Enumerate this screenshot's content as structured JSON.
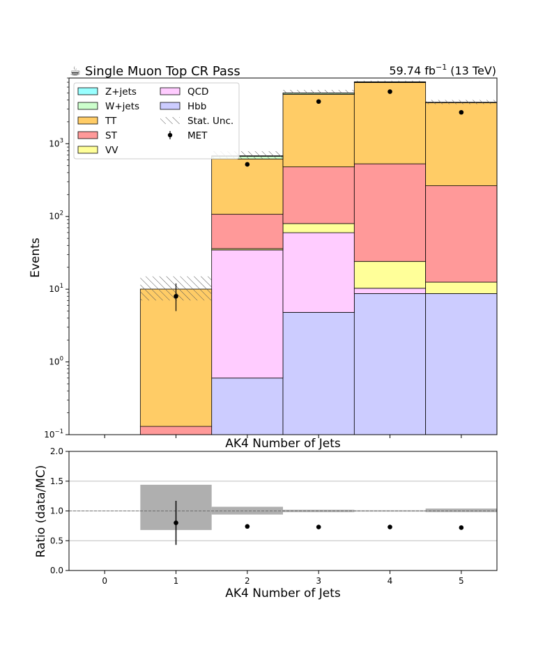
{
  "figure": {
    "title": "☕ Single Muon Top CR Pass",
    "lumi_label": "59.74 fb",
    "lumi_exponent": "−1",
    "energy_label": "(13 TeV)"
  },
  "chart_data": [
    {
      "type": "bar",
      "name": "main",
      "stacked": true,
      "log_y": true,
      "xlabel": "AK4 Number of Jets",
      "ylabel": "Events",
      "xlim": [
        -0.5,
        5.5
      ],
      "ylim": [
        0.1,
        8000
      ],
      "y_ticks": [
        {
          "value": 0.1,
          "mant": "10",
          "exp": "−1"
        },
        {
          "value": 1,
          "mant": "10",
          "exp": "0"
        },
        {
          "value": 10,
          "mant": "10",
          "exp": "1"
        },
        {
          "value": 100,
          "mant": "10",
          "exp": "2"
        },
        {
          "value": 1000,
          "mant": "10",
          "exp": "3"
        }
      ],
      "bin_edges": [
        -0.5,
        0.5,
        1.5,
        2.5,
        3.5,
        4.5,
        5.5
      ],
      "stack_order": [
        "Hbb",
        "QCD",
        "VV",
        "ST",
        "TT",
        "W+jets",
        "Z+jets"
      ],
      "series": [
        {
          "name": "Hbb",
          "color": "#ccccff",
          "values": [
            0,
            0,
            0.6,
            4.8,
            8.7,
            8.7
          ]
        },
        {
          "name": "QCD",
          "color": "#ffccff",
          "values": [
            0,
            0,
            34,
            55,
            1.6,
            0
          ]
        },
        {
          "name": "VV",
          "color": "#ffff99",
          "values": [
            0,
            0,
            1.5,
            20,
            13.8,
            3.8
          ]
        },
        {
          "name": "ST",
          "color": "#ff9999",
          "values": [
            0,
            0.13,
            71,
            400,
            505,
            252
          ]
        },
        {
          "name": "TT",
          "color": "#ffcc66",
          "values": [
            0,
            9.9,
            510,
            4300,
            6400,
            3400
          ]
        },
        {
          "name": "W+jets",
          "color": "#ccffcc",
          "values": [
            0,
            0,
            55,
            180,
            130,
            40
          ]
        },
        {
          "name": "Z+jets",
          "color": "#99ffff",
          "values": [
            0,
            0,
            10,
            30,
            30,
            10
          ]
        }
      ],
      "stat_unc": {
        "low": [
          0,
          7,
          620,
          4950,
          7100,
          3500
        ],
        "high": [
          0,
          15,
          790,
          5500,
          7350,
          4000
        ]
      },
      "data_points": {
        "name": "MET",
        "x": [
          1,
          2,
          3,
          4,
          5
        ],
        "y": [
          8,
          520,
          3800,
          5200,
          2700
        ],
        "err_low": [
          3,
          23,
          62,
          72,
          52
        ],
        "err_high": [
          4,
          23,
          62,
          72,
          52
        ]
      },
      "legend": {
        "position": "top-left",
        "entries": [
          {
            "label": "Z+jets",
            "color": "#99ffff",
            "kind": "patch"
          },
          {
            "label": "W+jets",
            "color": "#ccffcc",
            "kind": "patch"
          },
          {
            "label": "TT",
            "color": "#ffcc66",
            "kind": "patch"
          },
          {
            "label": "ST",
            "color": "#ff9999",
            "kind": "patch"
          },
          {
            "label": "VV",
            "color": "#ffff99",
            "kind": "patch"
          },
          {
            "label": "QCD",
            "color": "#ffccff",
            "kind": "patch"
          },
          {
            "label": "Hbb",
            "color": "#ccccff",
            "kind": "patch"
          },
          {
            "label": "Stat. Unc.",
            "color": "#555555",
            "kind": "hatch"
          },
          {
            "label": "MET",
            "color": "#000000",
            "kind": "marker"
          }
        ]
      }
    },
    {
      "type": "scatter",
      "name": "ratio",
      "xlabel": "AK4 Number of Jets",
      "ylabel": "Ratio (data/MC)",
      "xlim": [
        -0.5,
        5.5
      ],
      "ylim": [
        0,
        2
      ],
      "x_ticks": [
        "0",
        "1",
        "2",
        "3",
        "4",
        "5"
      ],
      "y_ticks": [
        "0.0",
        "0.5",
        "1.0",
        "1.5",
        "2.0"
      ],
      "grid_lines": [
        0.5,
        1.0,
        1.5
      ],
      "reference_line": 1.0,
      "unc_band": {
        "bins": [
          1,
          2,
          3,
          4,
          5
        ],
        "low": [
          0.68,
          0.94,
          0.98,
          0.99,
          0.98
        ],
        "high": [
          1.44,
          1.07,
          1.02,
          1.01,
          1.04
        ]
      },
      "points": {
        "x": [
          1,
          2,
          3,
          4,
          5
        ],
        "y": [
          0.8,
          0.74,
          0.73,
          0.73,
          0.72
        ],
        "err": [
          0.37,
          0.03,
          0.01,
          0.01,
          0.01
        ]
      }
    }
  ]
}
